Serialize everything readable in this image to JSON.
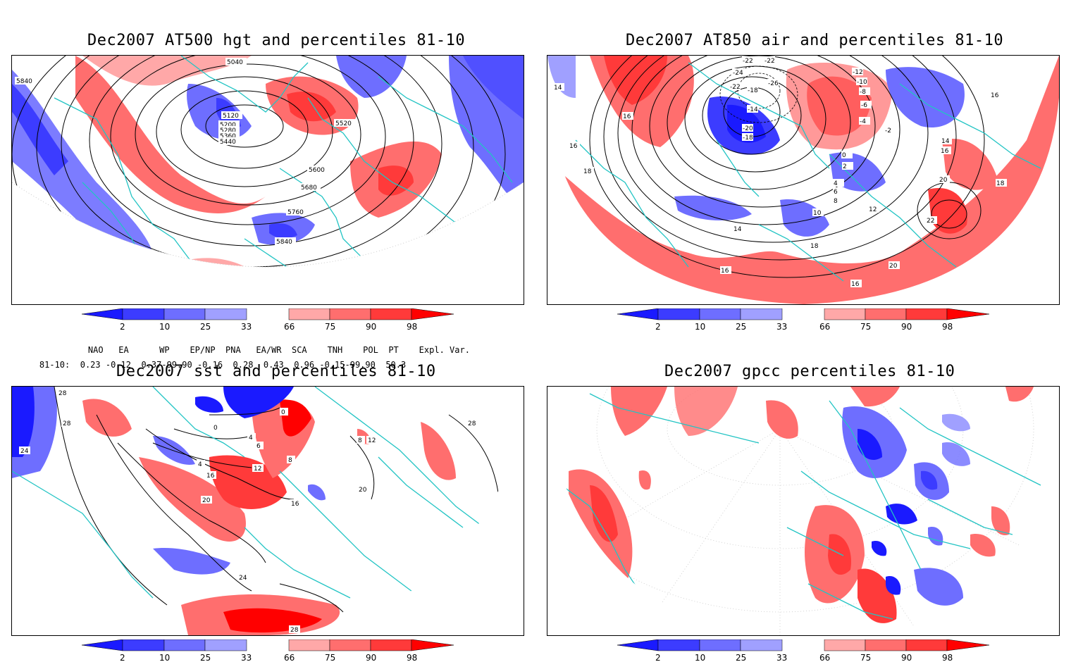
{
  "panels": [
    {
      "title": "Dec2007 AT500 hgt and percentiles 81-10",
      "contour_labels": [
        "5040",
        "5120",
        "5200",
        "5280",
        "5360",
        "5440",
        "5520",
        "5600",
        "5680",
        "5760",
        "5840",
        "5840"
      ]
    },
    {
      "title": "Dec2007 AT850 air and percentiles 81-10",
      "contour_labels": [
        "-22",
        "-22",
        "-26",
        "-24",
        "-22",
        "-18",
        "-14",
        "-20",
        "-18",
        "-12",
        "-10",
        "-8",
        "-6",
        "-4",
        "-2",
        "0",
        "2",
        "4",
        "6",
        "8",
        "10",
        "12",
        "14",
        "14",
        "16",
        "16",
        "16",
        "16",
        "18",
        "18",
        "18",
        "20",
        "22",
        "20",
        "16",
        "16",
        "14"
      ]
    },
    {
      "title": "Dec2007 sst and percentiles 81-10",
      "contour_labels": [
        "28",
        "28",
        "24",
        "0",
        "0",
        "4",
        "6",
        "4",
        "12",
        "8",
        "16",
        "20",
        "16",
        "20",
        "12",
        "8",
        "24",
        "28",
        "28"
      ]
    },
    {
      "title": "Dec2007 gpcc percentiles 81-10",
      "contour_labels": []
    }
  ],
  "colorbar": {
    "ticks": [
      "2",
      "10",
      "25",
      "33",
      "66",
      "75",
      "90",
      "98"
    ],
    "colors": [
      "#1a1aff",
      "#3c3cff",
      "#6e6eff",
      "#a0a0ff",
      "#ffffff",
      "#ffa8a8",
      "#ff6e6e",
      "#ff3a3a",
      "#ff0000"
    ]
  },
  "teleconnection": {
    "header": [
      "NAO",
      "EA",
      "WP",
      "EP/NP",
      "PNA",
      "EA/WR",
      "SCA",
      "TNH",
      "POL",
      "PT",
      "Expl. Var."
    ],
    "row_label": "81-10:",
    "values": [
      "0.23",
      "-0.12",
      "0.37",
      "-99.90",
      "-0.16",
      "0.28",
      "0.43",
      "0.96",
      "-0.15",
      "-99.90",
      "50.3"
    ]
  }
}
